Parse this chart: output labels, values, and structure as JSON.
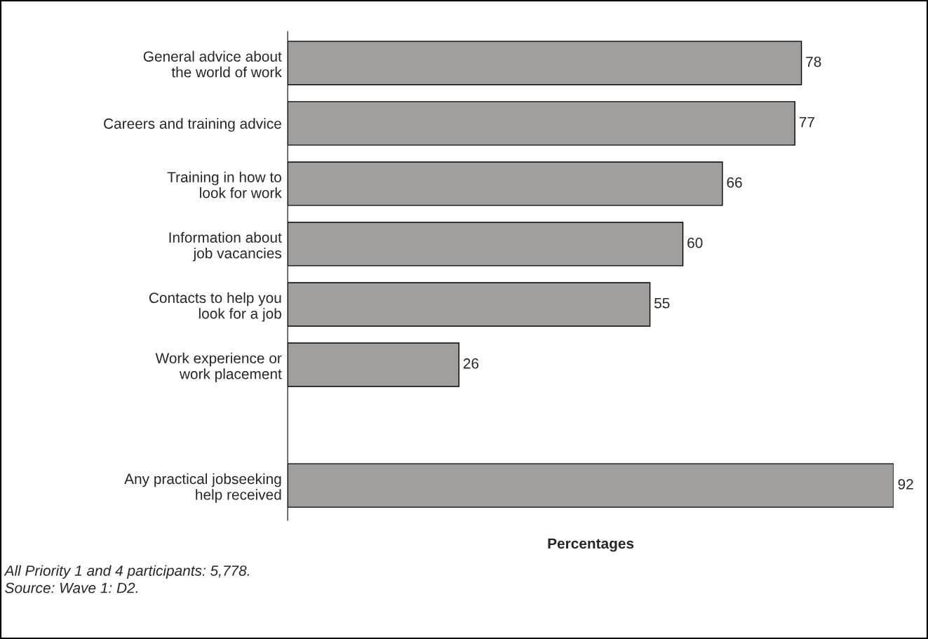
{
  "chart_data": {
    "type": "bar",
    "orientation": "horizontal",
    "xlabel": "Percentages",
    "categories": [
      "General advice about\nthe world of work",
      "Careers and training advice",
      "Training in how to\nlook for work",
      "Information about\njob vacancies",
      "Contacts to help you\nlook for a job",
      "Work experience or\nwork placement",
      null,
      "Any practical jobseeking\nhelp received"
    ],
    "values": [
      78,
      77,
      66,
      60,
      55,
      26,
      null,
      92
    ],
    "color": "#a09f9d",
    "data_labels": true,
    "grid": false,
    "legend": false,
    "tick_labels": "y",
    "annotations": [
      "All Priority 1 and 4 participants: 5,778.",
      "Source: Wave 1: D2."
    ]
  }
}
